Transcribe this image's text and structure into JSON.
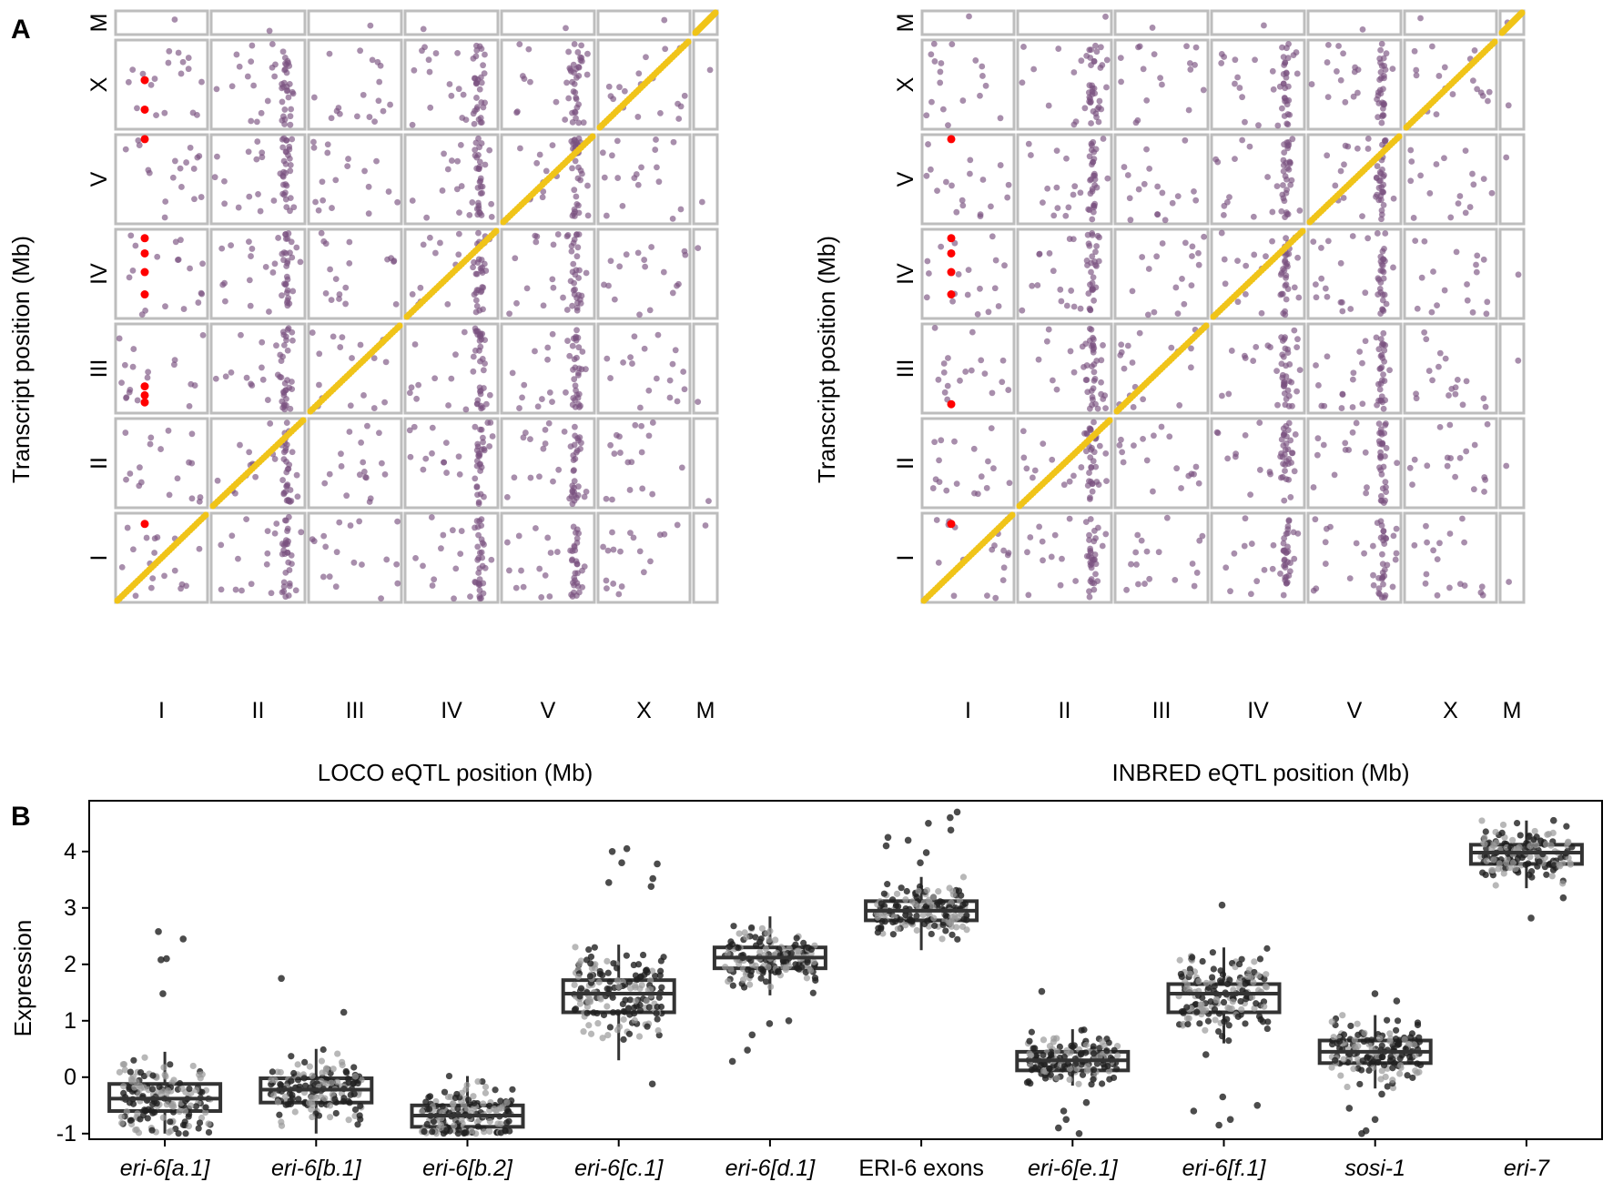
{
  "panels": {
    "A": "A",
    "B": "B"
  },
  "colors": {
    "trans": "#7a5280",
    "cis": "#f0c419",
    "highlight": "#ff0000",
    "frame": "#bdbdbd",
    "box": "#333333",
    "jitter_dark": "#1f1f1f",
    "jitter_light": "#9a9a9a"
  },
  "chart_data": [
    {
      "type": "scatter",
      "panel": "A",
      "facet_grid": true,
      "xlabel": "LOCO eQTL position (Mb)",
      "ylabel": "Transcript position (Mb)",
      "x_chromosomes": [
        "I",
        "II",
        "III",
        "IV",
        "V",
        "X",
        "M"
      ],
      "y_chromosomes": [
        "M",
        "X",
        "V",
        "IV",
        "III",
        "II",
        "I"
      ],
      "series": [
        {
          "color": "#f0c419",
          "description": "cis eQTL on diagonal"
        },
        {
          "color": "#7a5280",
          "description": "trans eQTL"
        },
        {
          "color": "#ff0000",
          "description": "eQTL at chromosome I hotspot"
        }
      ],
      "highlight_points": [
        {
          "x_chrom": "I",
          "y_chrom": "X",
          "y_frac": [
            0.55,
            0.22
          ]
        },
        {
          "x_chrom": "I",
          "y_chrom": "V",
          "y_frac": [
            0.95
          ]
        },
        {
          "x_chrom": "I",
          "y_chrom": "IV",
          "y_frac": [
            0.9,
            0.73,
            0.52,
            0.27
          ]
        },
        {
          "x_chrom": "I",
          "y_chrom": "III",
          "y_frac": [
            0.3,
            0.2,
            0.12
          ]
        },
        {
          "x_chrom": "I",
          "y_chrom": "I",
          "y_frac": [
            0.88
          ]
        }
      ],
      "hotspots": [
        "II",
        "IV",
        "V"
      ]
    },
    {
      "type": "scatter",
      "panel": "A",
      "facet_grid": true,
      "xlabel": "INBRED eQTL position (Mb)",
      "ylabel": "Transcript position (Mb)",
      "x_chromosomes": [
        "I",
        "II",
        "III",
        "IV",
        "V",
        "X",
        "M"
      ],
      "y_chromosomes": [
        "M",
        "X",
        "V",
        "IV",
        "III",
        "II",
        "I"
      ],
      "series": [
        {
          "color": "#f0c419",
          "description": "cis eQTL on diagonal"
        },
        {
          "color": "#7a5280",
          "description": "trans eQTL"
        },
        {
          "color": "#ff0000",
          "description": "eQTL at chromosome I hotspot"
        }
      ],
      "highlight_points": [
        {
          "x_chrom": "I",
          "y_chrom": "V",
          "y_frac": [
            0.95
          ]
        },
        {
          "x_chrom": "I",
          "y_chrom": "IV",
          "y_frac": [
            0.9,
            0.73,
            0.52,
            0.27
          ]
        },
        {
          "x_chrom": "I",
          "y_chrom": "III",
          "y_frac": [
            0.1
          ]
        },
        {
          "x_chrom": "I",
          "y_chrom": "I",
          "y_frac": [
            0.88
          ]
        }
      ],
      "hotspots": [
        "II",
        "IV",
        "V"
      ]
    },
    {
      "type": "box",
      "panel": "B",
      "xlabel": "",
      "ylabel": "Expression",
      "ylim": [
        -1.1,
        4.9
      ],
      "yticks": [
        -1,
        0,
        1,
        2,
        3,
        4
      ],
      "categories": [
        {
          "label": "eri-6[a.1]",
          "italic": true,
          "q1": -0.6,
          "median": -0.38,
          "q3": -0.12,
          "whisker_low": -1.0,
          "whisker_high": 0.45,
          "outliers": [
            2.58,
            2.45,
            2.08,
            2.1,
            1.48
          ]
        },
        {
          "label": "eri-6[b.1]",
          "italic": true,
          "q1": -0.45,
          "median": -0.22,
          "q3": -0.02,
          "whisker_low": -1.0,
          "whisker_high": 0.5,
          "outliers": [
            1.75,
            1.15
          ]
        },
        {
          "label": "eri-6[b.2]",
          "italic": true,
          "q1": -0.88,
          "median": -0.68,
          "q3": -0.5,
          "whisker_low": -1.0,
          "whisker_high": 0.02,
          "outliers": []
        },
        {
          "label": "eri-6[c.1]",
          "italic": true,
          "q1": 1.15,
          "median": 1.48,
          "q3": 1.72,
          "whisker_low": 0.3,
          "whisker_high": 2.35,
          "outliers": [
            4.05,
            4.0,
            3.8,
            3.78,
            3.52,
            3.45,
            3.38,
            -0.12
          ]
        },
        {
          "label": "eri-6[d.1]",
          "italic": true,
          "q1": 1.93,
          "median": 2.12,
          "q3": 2.3,
          "whisker_low": 1.45,
          "whisker_high": 2.85,
          "outliers": [
            1.0,
            0.95,
            0.75,
            0.48,
            0.28
          ]
        },
        {
          "label": "ERI-6 exons",
          "italic": false,
          "q1": 2.78,
          "median": 2.95,
          "q3": 3.12,
          "whisker_low": 2.25,
          "whisker_high": 3.55,
          "outliers": [
            4.7,
            4.6,
            4.5,
            4.38,
            4.25,
            4.2,
            4.1,
            3.98,
            3.8
          ]
        },
        {
          "label": "eri-6[e.1]",
          "italic": true,
          "q1": 0.12,
          "median": 0.3,
          "q3": 0.45,
          "whisker_low": -0.15,
          "whisker_high": 0.85,
          "outliers": [
            1.52,
            -0.45,
            -0.6,
            -0.75,
            -0.9,
            -1.0
          ]
        },
        {
          "label": "eri-6[f.1]",
          "italic": true,
          "q1": 1.15,
          "median": 1.48,
          "q3": 1.65,
          "whisker_low": 0.6,
          "whisker_high": 2.3,
          "outliers": [
            3.05,
            0.4,
            -0.35,
            -0.5,
            -0.6,
            -0.75,
            -0.85
          ]
        },
        {
          "label": "sosi-1",
          "italic": true,
          "q1": 0.25,
          "median": 0.45,
          "q3": 0.65,
          "whisker_low": -0.2,
          "whisker_high": 1.1,
          "outliers": [
            1.48,
            1.35,
            -0.3,
            -0.55,
            -0.75,
            -0.95,
            -1.0
          ]
        },
        {
          "label": "eri-7",
          "italic": true,
          "q1": 3.78,
          "median": 3.98,
          "q3": 4.12,
          "whisker_low": 3.35,
          "whisker_high": 4.55,
          "outliers": [
            4.55,
            3.18,
            2.82
          ]
        }
      ]
    }
  ]
}
